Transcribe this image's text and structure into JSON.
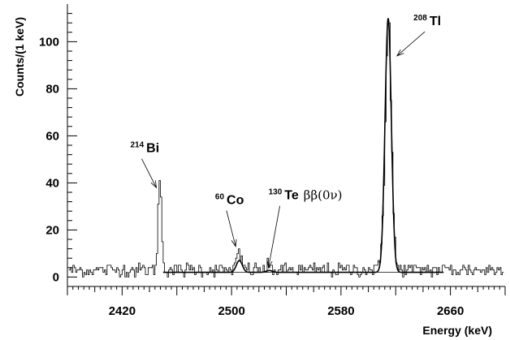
{
  "chart_data": {
    "type": "line",
    "xlabel": "Energy (keV)",
    "ylabel": "Counts/(1 keV)",
    "xlim": [
      2380,
      2700
    ],
    "ylim": [
      -4,
      116
    ],
    "x_ticks": [
      2420,
      2500,
      2580,
      2660
    ],
    "x_tick_labels": [
      "2420",
      "2500",
      "2580",
      "2660"
    ],
    "y_ticks": [
      0,
      20,
      40,
      60,
      80,
      100
    ],
    "y_tick_labels": [
      "0",
      "20",
      "40",
      "60",
      "80",
      "100"
    ],
    "grid": false,
    "legend": "none",
    "baseline": {
      "x_start": 2450,
      "x_end": 2655,
      "y": 2.0
    },
    "peaks": [
      {
        "name": "214Bi",
        "center": 2447.7,
        "height": 35,
        "sigma": 1.4,
        "fit": false
      },
      {
        "name": "60Co",
        "center": 2505.7,
        "height": 5,
        "sigma": 2.2,
        "fit": true
      },
      {
        "name": "130Te",
        "center": 2527.5,
        "height": 0.8,
        "sigma": 2.2,
        "fit": true
      },
      {
        "name": "208Tl",
        "center": 2614.5,
        "height": 108,
        "sigma": 2.3,
        "fit": true
      }
    ],
    "series": [
      {
        "style": "histogram",
        "values_generated": "background ~3 counts/keV with peaks"
      },
      {
        "style": "fit"
      }
    ],
    "annotations": [
      {
        "sup": "214",
        "text": "Bi",
        "x": 2426,
        "y": 53,
        "arrow_to": [
          2445,
          38
        ]
      },
      {
        "sup": "60",
        "text": "Co",
        "x": 2488,
        "y": 31,
        "arrow_to": [
          2503,
          13
        ]
      },
      {
        "sup": "130",
        "text": "Te",
        "extra": "ββ(0ν)",
        "x": 2527,
        "y": 33,
        "arrow_to": [
          2527,
          4
        ]
      },
      {
        "sup": "208",
        "text": "Tl",
        "x": 2633,
        "y": 107,
        "arrow_to": [
          2621,
          94
        ]
      }
    ]
  },
  "colors": {
    "line": "#000000",
    "background": "#ffffff"
  }
}
